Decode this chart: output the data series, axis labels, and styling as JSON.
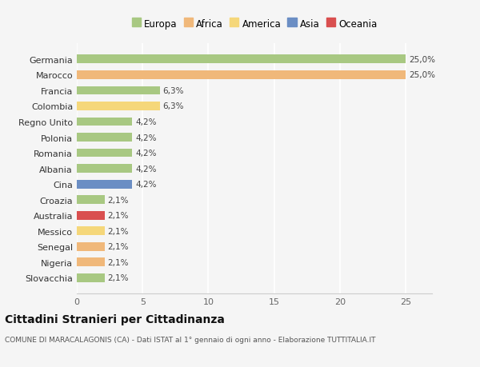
{
  "categories": [
    "Germania",
    "Marocco",
    "Francia",
    "Colombia",
    "Regno Unito",
    "Polonia",
    "Romania",
    "Albania",
    "Cina",
    "Croazia",
    "Australia",
    "Messico",
    "Senegal",
    "Nigeria",
    "Slovacchia"
  ],
  "values": [
    25.0,
    25.0,
    6.3,
    6.3,
    4.2,
    4.2,
    4.2,
    4.2,
    4.2,
    2.1,
    2.1,
    2.1,
    2.1,
    2.1,
    2.1
  ],
  "bar_colors": [
    "#a8c882",
    "#f0b87a",
    "#a8c882",
    "#f5d77a",
    "#a8c882",
    "#a8c882",
    "#a8c882",
    "#a8c882",
    "#6b8ec4",
    "#a8c882",
    "#d94f4f",
    "#f5d77a",
    "#f0b87a",
    "#f0b87a",
    "#a8c882"
  ],
  "labels": [
    "25,0%",
    "25,0%",
    "6,3%",
    "6,3%",
    "4,2%",
    "4,2%",
    "4,2%",
    "4,2%",
    "4,2%",
    "2,1%",
    "2,1%",
    "2,1%",
    "2,1%",
    "2,1%",
    "2,1%"
  ],
  "xlim": [
    0,
    27
  ],
  "xticks": [
    0,
    5,
    10,
    15,
    20,
    25
  ],
  "legend_items": [
    {
      "label": "Europa",
      "color": "#a8c882"
    },
    {
      "label": "Africa",
      "color": "#f0b87a"
    },
    {
      "label": "America",
      "color": "#f5d77a"
    },
    {
      "label": "Asia",
      "color": "#6b8ec4"
    },
    {
      "label": "Oceania",
      "color": "#d94f4f"
    }
  ],
  "title": "Cittadini Stranieri per Cittadinanza",
  "subtitle": "COMUNE DI MARACALAGONIS (CA) - Dati ISTAT al 1° gennaio di ogni anno - Elaborazione TUTTITALIA.IT",
  "background_color": "#f5f5f5",
  "grid_color": "#ffffff",
  "bar_height": 0.55
}
